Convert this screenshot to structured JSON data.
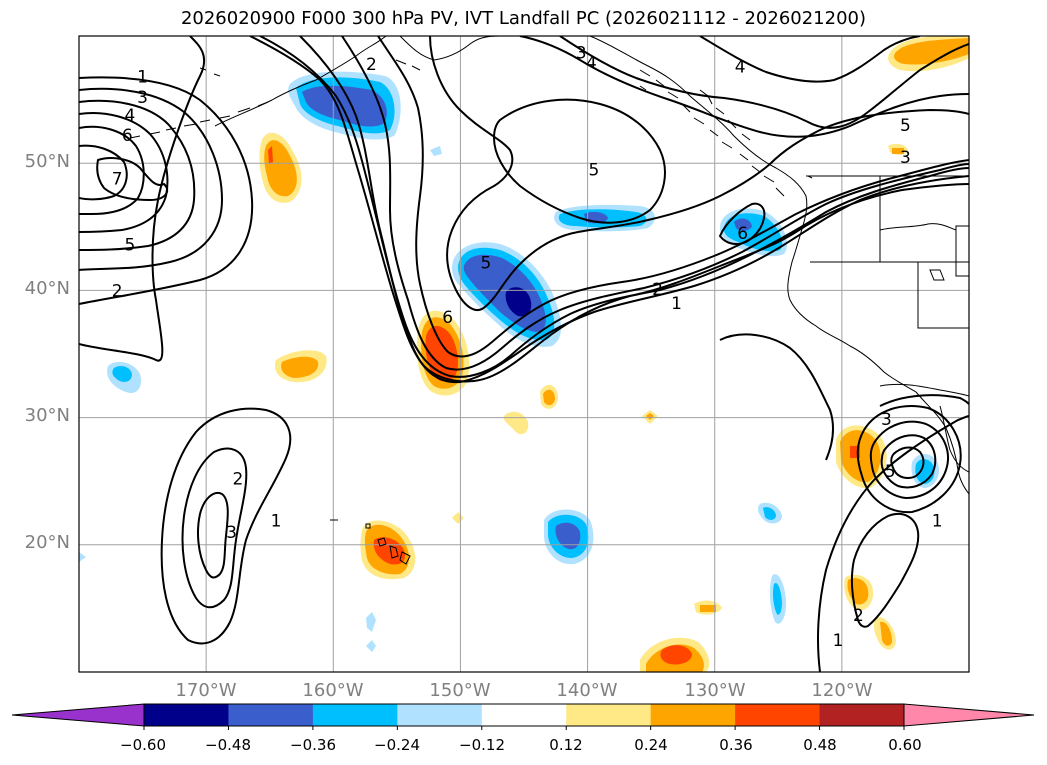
{
  "title": "2026020900 F000 300 hPa PV, IVT Landfall PC (2026021112 - 2026021200)",
  "map": {
    "projection": "PlateCarree",
    "lon_range": [
      -180,
      -110
    ],
    "lat_range": [
      10,
      60
    ],
    "lat_labels": [
      "50°N",
      "40°N",
      "30°N",
      "20°N"
    ],
    "lon_labels": [
      "170°W",
      "160°W",
      "150°W",
      "140°W",
      "130°W",
      "120°W"
    ],
    "contour_labels": [
      {
        "text": "1",
        "lon": -175.0,
        "lat": 56.8
      },
      {
        "text": "3",
        "lon": -175.0,
        "lat": 55.2
      },
      {
        "text": "4",
        "lon": -176.0,
        "lat": 53.8
      },
      {
        "text": "6",
        "lon": -176.2,
        "lat": 52.2
      },
      {
        "text": "7",
        "lon": -177.0,
        "lat": 48.8
      },
      {
        "text": "5",
        "lon": -176.0,
        "lat": 43.6
      },
      {
        "text": "2",
        "lon": -177.0,
        "lat": 40.0
      },
      {
        "text": "2",
        "lon": -157.0,
        "lat": 57.8
      },
      {
        "text": "3",
        "lon": -140.5,
        "lat": 58.7
      },
      {
        "text": "4",
        "lon": -139.7,
        "lat": 57.9
      },
      {
        "text": "4",
        "lon": -128.0,
        "lat": 57.6
      },
      {
        "text": "5",
        "lon": -139.5,
        "lat": 49.5
      },
      {
        "text": "5",
        "lon": -115.0,
        "lat": 53.0
      },
      {
        "text": "3",
        "lon": -115.0,
        "lat": 50.5
      },
      {
        "text": "6",
        "lon": -127.8,
        "lat": 44.5
      },
      {
        "text": "5",
        "lon": -148.0,
        "lat": 42.2
      },
      {
        "text": "6",
        "lon": -151.0,
        "lat": 37.9
      },
      {
        "text": "2",
        "lon": -134.5,
        "lat": 40.1
      },
      {
        "text": "1",
        "lon": -133.0,
        "lat": 39.0
      },
      {
        "text": "2",
        "lon": -167.5,
        "lat": 25.2
      },
      {
        "text": "3",
        "lon": -168.0,
        "lat": 21.0
      },
      {
        "text": "1",
        "lon": -164.5,
        "lat": 21.9
      },
      {
        "text": "3",
        "lon": -116.5,
        "lat": 29.9
      },
      {
        "text": "5",
        "lon": -116.2,
        "lat": 25.8
      },
      {
        "text": "1",
        "lon": -112.5,
        "lat": 21.9
      },
      {
        "text": "1",
        "lon": -120.3,
        "lat": 12.5
      },
      {
        "text": "2",
        "lon": -118.7,
        "lat": 14.5
      }
    ]
  },
  "colorbar": {
    "levels": [
      -0.6,
      -0.48,
      -0.36,
      -0.24,
      -0.12,
      0.12,
      0.24,
      0.36,
      0.48,
      0.6
    ],
    "tick_labels": [
      "−0.60",
      "−0.48",
      "−0.36",
      "−0.24",
      "−0.12",
      "0.12",
      "0.24",
      "0.36",
      "0.48",
      "0.60"
    ],
    "under_color": "#9932cc",
    "over_color": "#ff88aa",
    "colors": [
      "#00008b",
      "#3a5fcd",
      "#00bfff",
      "#b0e2ff",
      "#ffffff",
      "#ffe886",
      "#ffa500",
      "#ff4500",
      "#b22222"
    ]
  },
  "colors": {
    "grid": "#a0a0a0",
    "coast": "#000000",
    "contour": "#000000",
    "label": "#808080"
  }
}
